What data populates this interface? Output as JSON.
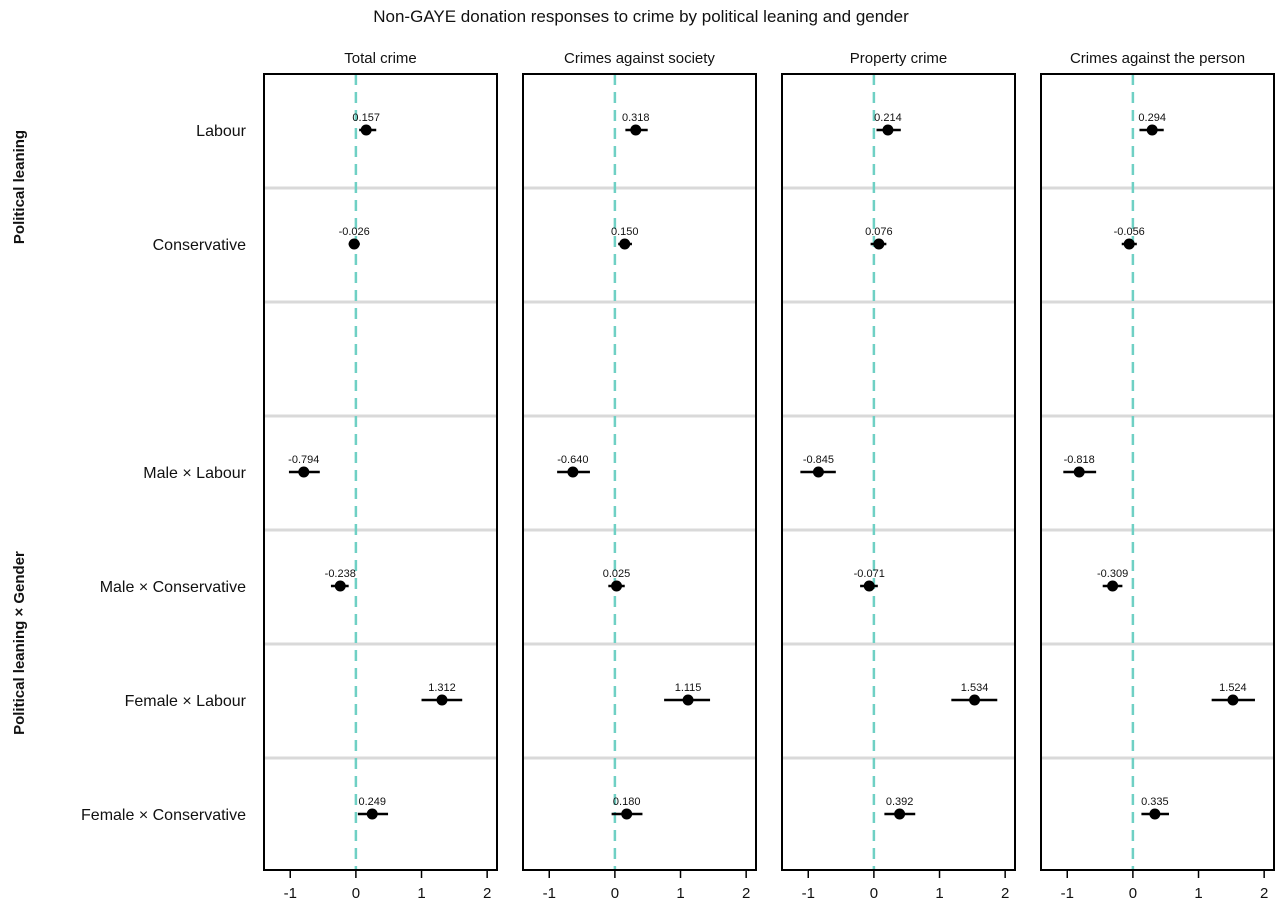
{
  "chart_data": {
    "type": "scatter",
    "subtype": "coefficient-plot-with-error-bars",
    "title": "Non-GAYE donation responses to crime by political leaning and gender",
    "row_groups": [
      {
        "label": "Political leaning",
        "rows": [
          "Labour",
          "Conservative"
        ]
      },
      {
        "label": "Political leaning × Gender",
        "rows": [
          "Male × Labour",
          "Male × Conservative",
          "Female × Labour",
          "Female × Conservative"
        ]
      }
    ],
    "rows": [
      "Labour",
      "Conservative",
      "",
      "Male × Labour",
      "Male × Conservative",
      "Female × Labour",
      "Female × Conservative"
    ],
    "xlim": [
      -1.4,
      2.15
    ],
    "xticks": [
      -1,
      0,
      1,
      2
    ],
    "xtick_labels": [
      "-1",
      "0",
      "1",
      "2"
    ],
    "reference_line": {
      "x": 0,
      "style": "dashed",
      "color": "#6fd0c4"
    },
    "grid": "horizontal separators between rows",
    "panels": [
      {
        "title": "Total crime",
        "estimates": [
          0.157,
          -0.026,
          null,
          -0.794,
          -0.238,
          1.312,
          0.249
        ],
        "labels": [
          "0.157",
          "-0.026",
          "",
          "-0.794",
          "-0.238",
          "1.312",
          "0.249"
        ],
        "ci_low": [
          0.05,
          -0.11,
          null,
          -1.02,
          -0.38,
          1.0,
          0.03
        ],
        "ci_high": [
          0.31,
          0.06,
          null,
          -0.55,
          -0.11,
          1.62,
          0.49
        ]
      },
      {
        "title": "Crimes against society",
        "estimates": [
          0.318,
          0.15,
          null,
          -0.64,
          0.025,
          1.115,
          0.18
        ],
        "labels": [
          "0.318",
          "0.150",
          "",
          "-0.640",
          "0.025",
          "1.115",
          "0.180"
        ],
        "ci_low": [
          0.16,
          0.05,
          null,
          -0.88,
          -0.1,
          0.75,
          -0.05
        ],
        "ci_high": [
          0.5,
          0.26,
          null,
          -0.38,
          0.15,
          1.45,
          0.42
        ]
      },
      {
        "title": "Property crime",
        "estimates": [
          0.214,
          0.076,
          null,
          -0.845,
          -0.071,
          1.534,
          0.392
        ],
        "labels": [
          "0.214",
          "0.076",
          "",
          "-0.845",
          "-0.071",
          "1.534",
          "0.392"
        ],
        "ci_low": [
          0.04,
          -0.05,
          null,
          -1.12,
          -0.21,
          1.18,
          0.16
        ],
        "ci_high": [
          0.41,
          0.19,
          null,
          -0.58,
          0.06,
          1.88,
          0.63
        ]
      },
      {
        "title": "Crimes against the person",
        "estimates": [
          0.294,
          -0.056,
          null,
          -0.818,
          -0.309,
          1.524,
          0.335
        ],
        "labels": [
          "0.294",
          "-0.056",
          "",
          "-0.818",
          "-0.309",
          "1.524",
          "0.335"
        ],
        "ci_low": [
          0.1,
          -0.17,
          null,
          -1.06,
          -0.46,
          1.2,
          0.13
        ],
        "ci_high": [
          0.47,
          0.06,
          null,
          -0.56,
          -0.16,
          1.86,
          0.55
        ]
      }
    ]
  }
}
